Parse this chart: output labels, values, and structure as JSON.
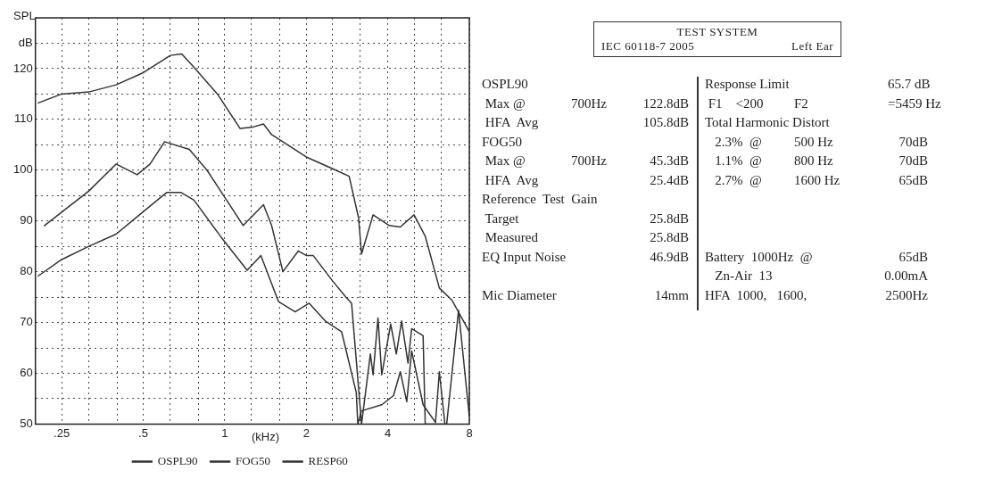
{
  "chart_data": {
    "type": "line",
    "ylabel": "SPL",
    "xlabel": "(kHz)",
    "log": "x",
    "grid": true,
    "legend": "bottom",
    "xlim": [
      0.2,
      8
    ],
    "xticks": [
      {
        "value": 0.25,
        "label": ".25"
      },
      {
        "value": 0.315,
        "label": null
      },
      {
        "value": 0.4,
        "label": null
      },
      {
        "value": 0.5,
        "label": ".5"
      },
      {
        "value": 0.63,
        "label": null
      },
      {
        "value": 0.8,
        "label": null
      },
      1,
      {
        "value": 1.25,
        "label": null
      },
      {
        "value": 1.6,
        "label": null
      },
      2,
      {
        "value": 2.5,
        "label": null
      },
      {
        "value": 3.15,
        "label": null
      },
      4,
      {
        "value": 5,
        "label": null
      },
      {
        "value": 6.3,
        "label": null
      },
      8
    ],
    "ylim": [
      50,
      130
    ],
    "yticks": [
      50,
      {
        "value": 55,
        "label": null
      },
      60,
      {
        "value": 65,
        "label": null
      },
      70,
      {
        "value": 75,
        "label": null
      },
      80,
      {
        "value": 85,
        "label": null
      },
      90,
      {
        "value": 95,
        "label": null
      },
      100,
      {
        "value": 105,
        "label": null
      },
      110,
      {
        "value": 115,
        "label": null
      },
      120,
      {
        "value": 125,
        "label": "dB"
      }
    ],
    "series": [
      {
        "name": "OSPL90",
        "color": "#333333",
        "x": [
          0.204,
          0.25,
          0.315,
          0.397,
          0.496,
          0.63,
          0.694,
          0.76,
          0.94,
          1.14,
          1.27,
          1.39,
          1.49,
          2.0,
          2.57,
          2.88,
          3.12,
          3.2,
          3.53,
          4.05,
          4.45,
          5.0,
          5.5,
          6.2,
          6.9,
          8
        ],
        "values": [
          113.2,
          115,
          115.4,
          116.8,
          119.1,
          122.6,
          122.9,
          120.6,
          115,
          108.2,
          108.5,
          109.1,
          107,
          102.6,
          100,
          98.8,
          90.6,
          83.5,
          91.2,
          89.1,
          88.8,
          91.2,
          87,
          76.8,
          74.4,
          68.2
        ]
      },
      {
        "name": "FOG50",
        "color": "#333333",
        "x": [
          0.204,
          0.25,
          0.315,
          0.397,
          0.5,
          0.61,
          0.69,
          0.77,
          0.97,
          1.21,
          1.36,
          1.58,
          1.82,
          2.05,
          2.35,
          2.7,
          3.06,
          3.1,
          3.2,
          3.8,
          4.2,
          4.45,
          4.7,
          4.9,
          5.4,
          6.0,
          6.2,
          6.5
        ],
        "values": [
          79.1,
          82.4,
          85,
          87.4,
          91.8,
          95.6,
          95.6,
          94.1,
          86.8,
          80.3,
          83.2,
          74.1,
          72.1,
          73.8,
          70.3,
          68.2,
          56.2,
          50,
          52.6,
          53.8,
          55.6,
          60.3,
          54.4,
          64.4,
          53.8,
          50.3,
          60.3,
          50
        ]
      },
      {
        "name": "RESP60",
        "color": "#333333",
        "x": [
          0.215,
          0.315,
          0.397,
          0.475,
          0.53,
          0.6,
          0.74,
          0.86,
          1.17,
          1.39,
          1.49,
          1.64,
          1.87,
          2.0,
          2.12,
          2.5,
          2.8,
          2.94,
          3.2,
          3.45,
          3.53,
          3.68,
          3.8,
          4.1,
          4.3,
          4.5,
          4.75,
          4.9,
          5.4,
          5.5,
          6.6,
          7.3,
          8
        ],
        "values": [
          89,
          95.9,
          101.2,
          99.1,
          101.2,
          105.6,
          104.1,
          100,
          89.1,
          93.2,
          89.1,
          80,
          84.1,
          83.2,
          83.2,
          78.2,
          75,
          73.8,
          50,
          63.8,
          59.7,
          70.9,
          59.7,
          69.7,
          63.8,
          70.3,
          62,
          68.8,
          67.4,
          50,
          50,
          72.4,
          51.5
        ]
      }
    ],
    "annotations": [
      "TEST SYSTEM",
      "IEC 60118-7 2005",
      "Left Ear",
      "OSPL90",
      " Max @\t700Hz\t122.8dB",
      " HFA  Avg\t\t105.8dB",
      "FOG50",
      " Max @\t700Hz\t45.3dB",
      " HFA  Avg\t\t25.4dB",
      "Reference  Test  Gain",
      " Target\t\t25.8dB",
      " Measured\t\t25.8dB",
      "EQ Input Noise\t\t46.9dB",
      "Mic Diameter\t\t14mm",
      "Response Limit\t\t\t65.7 dB",
      " F1    <200\tF2\t\t=5459 Hz",
      "Total Harmonic Distort",
      "   2.3%  @\t500 Hz\t70dB",
      "   1.1%  @\t800 Hz\t70dB",
      "   2.7%  @\t1600 Hz\t65dB",
      "Battery  1000Hz  @\t65dB",
      "   Zn-Air  13\t0.00mA",
      "HFA  1000,   1600,\t2500Hz"
    ]
  }
}
